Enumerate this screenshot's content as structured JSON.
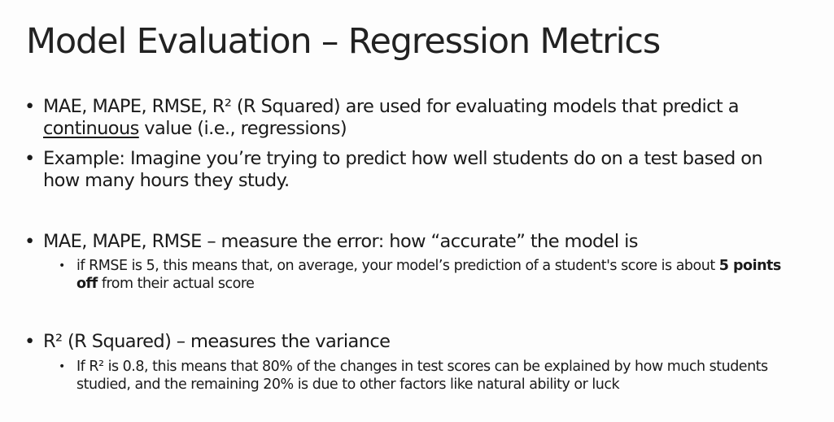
{
  "slide": {
    "title": "Model Evaluation – Regression Metrics",
    "bullets": [
      {
        "pre": "MAE, MAPE, RMSE, R² (R Squared) are used for evaluating models that predict a ",
        "underline": "continuous",
        "post": " value (i.e., regressions)"
      },
      {
        "text": "Example: Imagine you’re trying to predict how well students do on a test based on how many hours they study."
      },
      {
        "text": "MAE, MAPE, RMSE – measure the error: how “accurate” the model is",
        "sub": {
          "pre": "if RMSE is 5, this means that, on average, your model’s prediction of a student's score is about ",
          "bold": "5 points off",
          "post": " from their actual score"
        }
      },
      {
        "text": "R² (R Squared) – measures the variance",
        "sub": {
          "text": "If R² is 0.8, this means that 80% of the changes in test scores can be explained by how much students studied, and the remaining 20% is due to other factors like natural ability or luck"
        }
      }
    ],
    "bullet_char": "•"
  }
}
